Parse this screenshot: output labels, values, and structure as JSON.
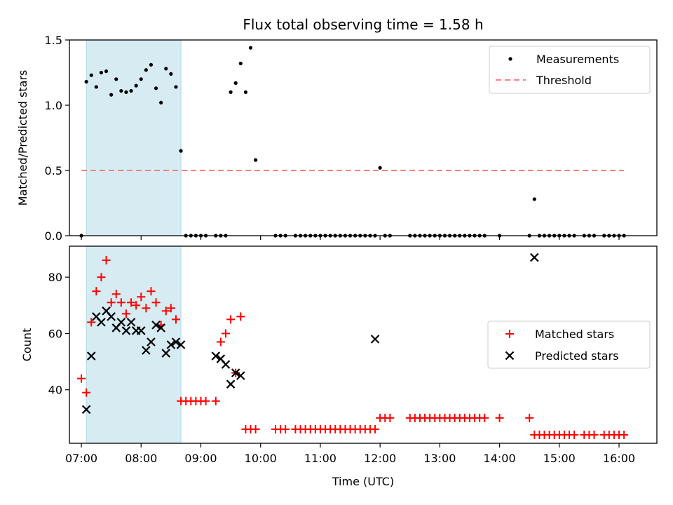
{
  "chart_data": [
    {
      "type": "scatter",
      "title": "Flux total observing time = 1.58 h",
      "xlabel": "",
      "ylabel": "Matched/Predicted stars",
      "xlim": [
        "06:48",
        "16:38"
      ],
      "ylim": [
        0,
        1.5
      ],
      "yticks": [
        "0.0",
        "0.5",
        "1.0",
        "1.5"
      ],
      "shaded_span": [
        "07:05",
        "08:40"
      ],
      "shade_color": "#add8e6",
      "legend": {
        "position": "top-right",
        "entries": [
          "Measurements",
          "Threshold"
        ]
      },
      "threshold": {
        "name": "Threshold",
        "value": 0.5,
        "x_range": [
          "07:00",
          "16:05"
        ],
        "color": "#ff8080",
        "style": "dashed"
      },
      "series": [
        {
          "name": "Measurements",
          "marker": "dot",
          "color": "#000000",
          "x": [
            "07:00",
            "07:05",
            "07:10",
            "07:15",
            "07:20",
            "07:25",
            "07:30",
            "07:35",
            "07:40",
            "07:45",
            "07:50",
            "07:55",
            "08:00",
            "08:05",
            "08:10",
            "08:15",
            "08:20",
            "08:25",
            "08:30",
            "08:35",
            "08:40",
            "08:45",
            "08:50",
            "08:55",
            "09:00",
            "09:05",
            "09:15",
            "09:20",
            "09:25",
            "09:30",
            "09:35",
            "09:40",
            "09:45",
            "09:50",
            "09:55",
            "10:15",
            "10:20",
            "10:25",
            "10:35",
            "10:40",
            "10:45",
            "10:50",
            "10:55",
            "11:00",
            "11:05",
            "11:10",
            "11:15",
            "11:20",
            "11:25",
            "11:30",
            "11:35",
            "11:40",
            "11:45",
            "11:50",
            "11:55",
            "12:00",
            "12:05",
            "12:10",
            "12:30",
            "12:35",
            "12:40",
            "12:45",
            "12:50",
            "12:55",
            "13:00",
            "13:05",
            "13:10",
            "13:15",
            "13:20",
            "13:25",
            "13:30",
            "13:35",
            "13:40",
            "13:45",
            "14:00",
            "14:30",
            "14:35",
            "14:40",
            "14:45",
            "14:50",
            "14:55",
            "15:00",
            "15:05",
            "15:10",
            "15:15",
            "15:25",
            "15:30",
            "15:35",
            "15:45",
            "15:50",
            "15:55",
            "16:00",
            "16:05"
          ],
          "y": [
            0,
            1.18,
            1.23,
            1.14,
            1.25,
            1.26,
            1.08,
            1.2,
            1.11,
            1.1,
            1.11,
            1.15,
            1.2,
            1.27,
            1.31,
            1.13,
            1.02,
            1.28,
            1.24,
            1.14,
            0.65,
            0,
            0,
            0,
            0,
            0,
            0,
            0,
            0,
            1.1,
            1.17,
            1.32,
            1.1,
            1.44,
            0.58,
            0,
            0,
            0,
            0,
            0,
            0,
            0,
            0,
            0,
            0,
            0,
            0,
            0,
            0,
            0,
            0,
            0,
            0,
            0,
            0,
            0.52,
            0,
            0,
            0,
            0,
            0,
            0,
            0,
            0,
            0,
            0,
            0,
            0,
            0,
            0,
            0,
            0,
            0,
            0,
            0,
            0,
            0.28,
            0,
            0,
            0,
            0,
            0,
            0,
            0,
            0,
            0,
            0,
            0,
            0,
            0,
            0,
            0,
            0
          ]
        }
      ]
    },
    {
      "type": "scatter",
      "title": "",
      "xlabel": "Time (UTC)",
      "ylabel": "Count",
      "xlim": [
        "06:48",
        "16:38"
      ],
      "ylim": [
        21,
        91
      ],
      "yticks": [
        "40",
        "60",
        "80"
      ],
      "xticks": [
        "07:00",
        "08:00",
        "09:00",
        "10:00",
        "11:00",
        "12:00",
        "13:00",
        "14:00",
        "15:00",
        "16:00"
      ],
      "shaded_span": [
        "07:05",
        "08:40"
      ],
      "shade_color": "#add8e6",
      "legend": {
        "position": "center-right",
        "entries": [
          "Matched stars",
          "Predicted stars"
        ]
      },
      "series": [
        {
          "name": "Matched stars",
          "marker": "plus",
          "color": "#ff0000",
          "x": [
            "07:00",
            "07:05",
            "07:10",
            "07:15",
            "07:20",
            "07:25",
            "07:30",
            "07:35",
            "07:40",
            "07:45",
            "07:50",
            "07:55",
            "08:00",
            "08:05",
            "08:10",
            "08:15",
            "08:20",
            "08:25",
            "08:30",
            "08:35",
            "08:40",
            "08:45",
            "08:50",
            "08:55",
            "09:00",
            "09:05",
            "09:15",
            "09:20",
            "09:25",
            "09:30",
            "09:35",
            "09:40",
            "09:45",
            "09:50",
            "09:55",
            "10:15",
            "10:20",
            "10:25",
            "10:35",
            "10:40",
            "10:45",
            "10:50",
            "10:55",
            "11:00",
            "11:05",
            "11:10",
            "11:15",
            "11:20",
            "11:25",
            "11:30",
            "11:35",
            "11:40",
            "11:45",
            "11:50",
            "11:55",
            "12:00",
            "12:05",
            "12:10",
            "12:30",
            "12:35",
            "12:40",
            "12:45",
            "12:50",
            "12:55",
            "13:00",
            "13:05",
            "13:10",
            "13:15",
            "13:20",
            "13:25",
            "13:30",
            "13:35",
            "13:40",
            "13:45",
            "14:00",
            "14:30",
            "14:35",
            "14:40",
            "14:45",
            "14:50",
            "14:55",
            "15:00",
            "15:05",
            "15:10",
            "15:15",
            "15:25",
            "15:30",
            "15:35",
            "15:45",
            "15:50",
            "15:55",
            "16:00",
            "16:05"
          ],
          "y": [
            44,
            39,
            64,
            75,
            80,
            86,
            71,
            74,
            71,
            67,
            71,
            70,
            73,
            69,
            75,
            71,
            63,
            68,
            69,
            65,
            36,
            36,
            36,
            36,
            36,
            36,
            36,
            57,
            60,
            65,
            46,
            66,
            26,
            26,
            26,
            26,
            26,
            26,
            26,
            26,
            26,
            26,
            26,
            26,
            26,
            26,
            26,
            26,
            26,
            26,
            26,
            26,
            26,
            26,
            26,
            30,
            30,
            30,
            30,
            30,
            30,
            30,
            30,
            30,
            30,
            30,
            30,
            30,
            30,
            30,
            30,
            30,
            30,
            30,
            30,
            30,
            24,
            24,
            24,
            24,
            24,
            24,
            24,
            24,
            24,
            24,
            24,
            24,
            24,
            24,
            24,
            24,
            24
          ]
        },
        {
          "name": "Predicted stars",
          "marker": "x",
          "color": "#000000",
          "x": [
            "07:05",
            "07:10",
            "07:15",
            "07:20",
            "07:25",
            "07:30",
            "07:35",
            "07:40",
            "07:45",
            "07:50",
            "07:55",
            "08:00",
            "08:05",
            "08:10",
            "08:15",
            "08:20",
            "08:25",
            "08:30",
            "08:35",
            "08:40",
            "09:15",
            "09:20",
            "09:25",
            "09:30",
            "09:35",
            "09:40",
            "11:55",
            "14:35"
          ],
          "y": [
            33,
            52,
            66,
            64,
            68,
            66,
            62,
            64,
            61,
            64,
            61,
            61,
            54,
            57,
            63,
            62,
            53,
            56,
            57,
            56,
            52,
            51,
            49,
            42,
            46,
            45,
            58,
            87
          ]
        }
      ]
    }
  ]
}
